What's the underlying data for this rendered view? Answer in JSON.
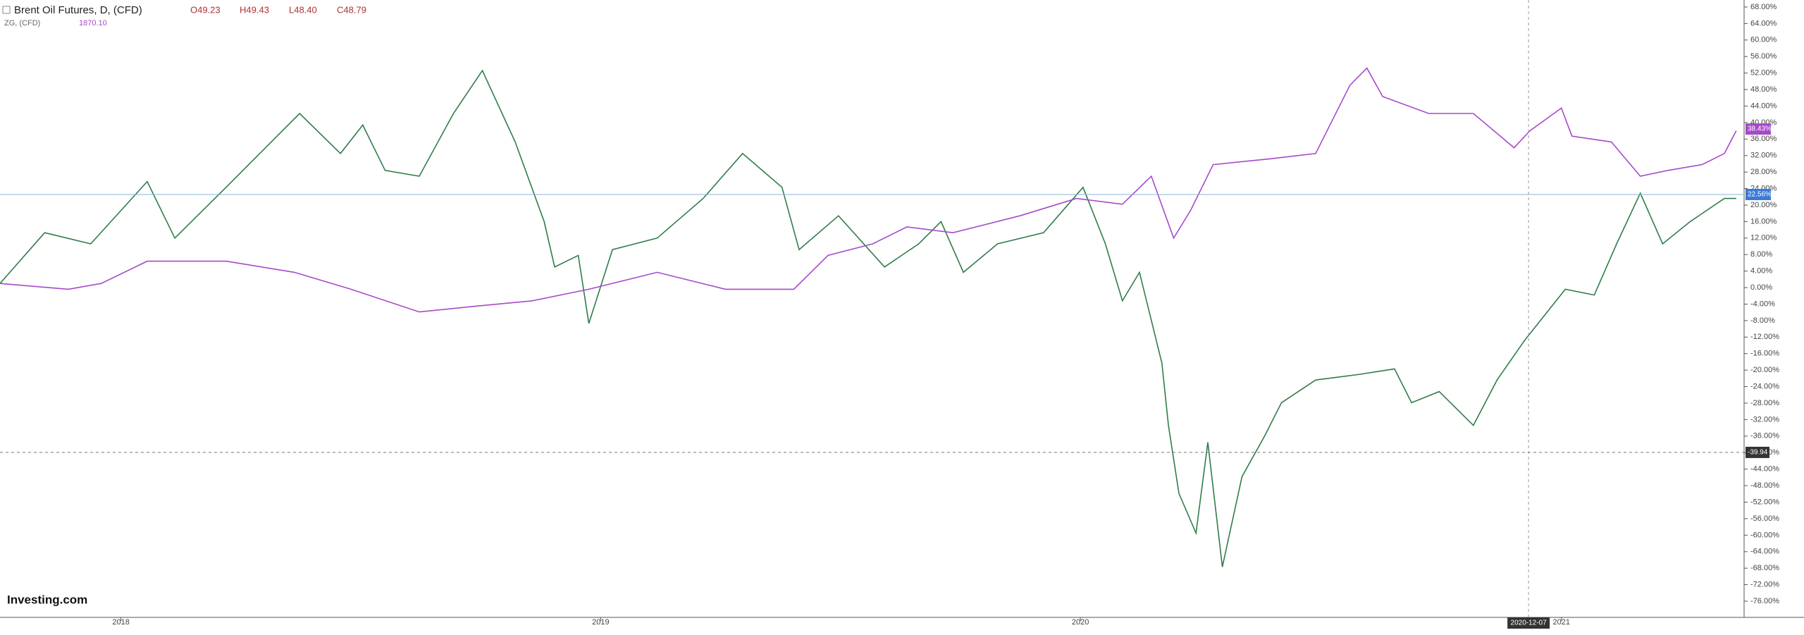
{
  "chart_data": {
    "type": "line",
    "title": "Brent Oil Futures, D, (CFD)",
    "ohlc": [
      "O49.23",
      "H49.43",
      "L48.40",
      "C48.79"
    ],
    "brand": "Investing.com",
    "xlim": [
      "2017-10-01",
      "2021-05-20"
    ],
    "xticks": [
      "2018",
      "2019",
      "2020",
      "2021"
    ],
    "ylim": [
      -78.9,
      69.7
    ],
    "yticks": [
      {
        "value": 68,
        "label": "68.00%"
      },
      {
        "value": 64,
        "label": "64.00%"
      },
      {
        "value": 60,
        "label": "60.00%"
      },
      {
        "value": 56,
        "label": "56.00%"
      },
      {
        "value": 52,
        "label": "52.00%"
      },
      {
        "value": 48,
        "label": "48.00%"
      },
      {
        "value": 44,
        "label": "44.00%"
      },
      {
        "value": 40,
        "label": "40.00%"
      },
      {
        "value": 36,
        "label": "36.00%"
      },
      {
        "value": 32,
        "label": "32.00%"
      },
      {
        "value": 28,
        "label": "28.00%"
      },
      {
        "value": 24,
        "label": "24.00%"
      },
      {
        "value": 20,
        "label": "20.00%"
      },
      {
        "value": 16,
        "label": "16.00%"
      },
      {
        "value": 12,
        "label": "12.00%"
      },
      {
        "value": 8,
        "label": "8.00%"
      },
      {
        "value": 4,
        "label": "4.00%"
      },
      {
        "value": 0,
        "label": "0.00%"
      },
      {
        "value": -4,
        "label": "-4.00%"
      },
      {
        "value": -8,
        "label": "-8.00%"
      },
      {
        "value": -12,
        "label": "-12.00%"
      },
      {
        "value": -16,
        "label": "-16.00%"
      },
      {
        "value": -20,
        "label": "-20.00%"
      },
      {
        "value": -24,
        "label": "-24.00%"
      },
      {
        "value": -28,
        "label": "-28.00%"
      },
      {
        "value": -32,
        "label": "-32.00%"
      },
      {
        "value": -36,
        "label": "-36.00%"
      },
      {
        "value": -40,
        "label": "-40.00%"
      },
      {
        "value": -44,
        "label": "-44.00%"
      },
      {
        "value": -48,
        "label": "-48.00%"
      },
      {
        "value": -52,
        "label": "-52.00%"
      },
      {
        "value": -56,
        "label": "-56.00%"
      },
      {
        "value": -60,
        "label": "-60.00%"
      },
      {
        "value": -64,
        "label": "-64.00%"
      },
      {
        "value": -68,
        "label": "-68.00%"
      },
      {
        "value": -72,
        "label": "-72.00%"
      },
      {
        "value": -76,
        "label": "-76.00%"
      }
    ],
    "series": [
      {
        "name": "Brent Oil Futures",
        "color": "#2f7d4a",
        "x": [
          "2017-10-01",
          "2017-11-04",
          "2017-12-09",
          "2018-01-21",
          "2018-02-11",
          "2018-03-22",
          "2018-05-17",
          "2018-06-17",
          "2018-07-04",
          "2018-07-21",
          "2018-08-16",
          "2018-09-11",
          "2018-10-03",
          "2018-10-28",
          "2018-11-19",
          "2018-11-27",
          "2018-12-15",
          "2018-12-23",
          "2019-01-10",
          "2019-02-13",
          "2019-03-20",
          "2019-04-19",
          "2019-05-19",
          "2019-06-01",
          "2019-07-01",
          "2019-08-05",
          "2019-08-31",
          "2019-09-17",
          "2019-10-04",
          "2019-10-30",
          "2019-12-04",
          "2020-01-03",
          "2020-01-20",
          "2020-02-02",
          "2020-02-15",
          "2020-03-03",
          "2020-03-08",
          "2020-03-16",
          "2020-03-29",
          "2020-04-07",
          "2020-04-18",
          "2020-05-03",
          "2020-05-20",
          "2020-06-02",
          "2020-06-28",
          "2020-08-01",
          "2020-08-27",
          "2020-09-09",
          "2020-09-30",
          "2020-10-26",
          "2020-11-13",
          "2020-12-04",
          "2021-01-04",
          "2021-01-26",
          "2021-02-12",
          "2021-03-02",
          "2021-03-19",
          "2021-04-09",
          "2021-05-05",
          "2021-05-14"
        ],
        "values": [
          1,
          13.3,
          10.6,
          25.7,
          12,
          24.3,
          42.2,
          32.5,
          39.4,
          28.4,
          27,
          42.2,
          52.6,
          35.3,
          16,
          5,
          7.8,
          -8.7,
          9.2,
          12,
          21.6,
          32.5,
          24.3,
          9.2,
          17.4,
          5,
          10.6,
          16,
          3.7,
          10.6,
          13.3,
          24.3,
          10.6,
          -3.2,
          3.7,
          -18.3,
          -33.4,
          -49.9,
          -59.5,
          -37.5,
          -67.7,
          -45.8,
          -36.1,
          -27.9,
          -22.4,
          -21,
          -19.7,
          -27.9,
          -25.2,
          -33.4,
          -22.4,
          -12.8,
          -0.4,
          -1.8,
          10.6,
          22.9,
          10.6,
          16,
          21.6,
          21.6
        ],
        "price_line": {
          "value": 22.56,
          "label": "22.56%"
        }
      },
      {
        "name": "ZG, (CFD)",
        "color": "#a64ac9",
        "last_price": "1870.10",
        "x": [
          "2017-10-01",
          "2017-11-22",
          "2017-12-17",
          "2018-01-21",
          "2018-03-22",
          "2018-05-13",
          "2018-06-25",
          "2018-08-16",
          "2018-09-28",
          "2018-11-10",
          "2018-12-23",
          "2019-02-13",
          "2019-04-06",
          "2019-05-28",
          "2019-06-23",
          "2019-07-27",
          "2019-08-22",
          "2019-09-26",
          "2019-11-16",
          "2019-12-29",
          "2020-02-02",
          "2020-02-24",
          "2020-03-12",
          "2020-03-25",
          "2020-04-11",
          "2020-05-24",
          "2020-06-28",
          "2020-07-24",
          "2020-08-06",
          "2020-08-18",
          "2020-09-22",
          "2020-10-26",
          "2020-11-26",
          "2020-12-08",
          "2021-01-01",
          "2021-01-09",
          "2021-02-08",
          "2021-03-02",
          "2021-03-23",
          "2021-04-18",
          "2021-05-05",
          "2021-05-14"
        ],
        "values": [
          1,
          -0.4,
          1,
          6.4,
          6.4,
          3.7,
          -0.4,
          -5.9,
          -4.5,
          -3.2,
          -0.4,
          3.7,
          -0.4,
          -0.4,
          7.8,
          10.6,
          14.7,
          13.3,
          17.4,
          21.6,
          20.2,
          27,
          12,
          18.8,
          29.8,
          31.2,
          32.5,
          49,
          53.2,
          46.3,
          42.2,
          42.2,
          33.9,
          38,
          43.5,
          36.7,
          35.3,
          27,
          28.4,
          29.8,
          32.5,
          38
        ],
        "price_line": {
          "value": 38.43,
          "label": "38.43%"
        }
      }
    ],
    "crosshair": {
      "x": "2020-12-07",
      "y": -39.94
    }
  }
}
